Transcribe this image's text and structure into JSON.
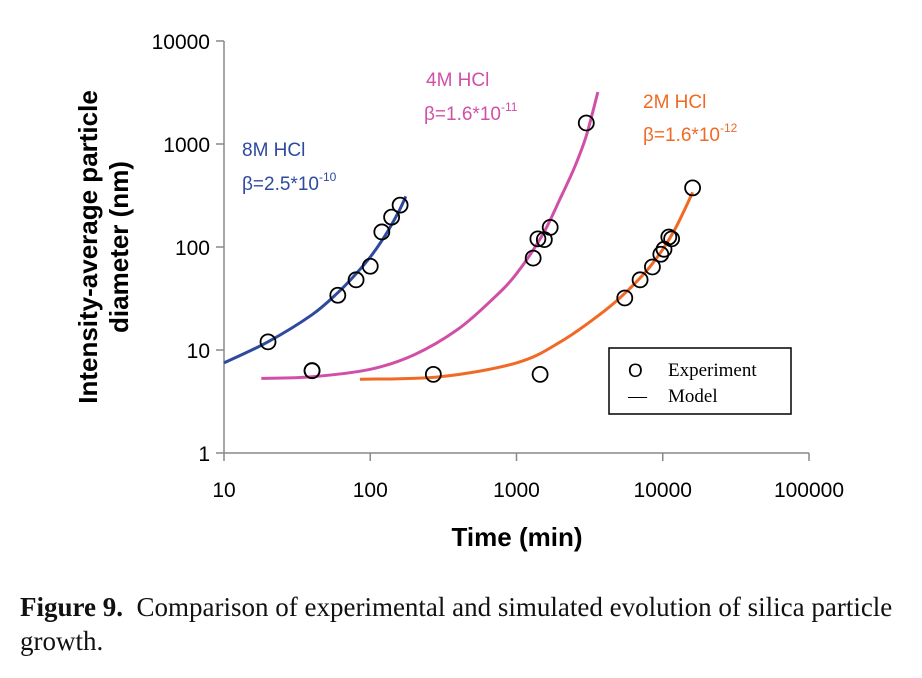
{
  "caption": {
    "label": "Figure 9.",
    "text": "Comparison of experimental and simulated evolution of silica particle growth."
  },
  "chart_data": {
    "type": "scatter",
    "xscale": "log",
    "yscale": "log",
    "xlabel": "Time (min)",
    "ylabel_lines": [
      "Intensity-average particle",
      "diameter (nm)"
    ],
    "xlim": [
      10,
      100000
    ],
    "ylim": [
      1,
      10000
    ],
    "x_ticks": [
      10,
      100,
      1000,
      10000,
      100000
    ],
    "x_tick_labels": [
      "10",
      "100",
      "1000",
      "10000",
      "100000"
    ],
    "y_ticks": [
      1,
      10,
      100,
      1000,
      10000
    ],
    "y_tick_labels": [
      "1",
      "10",
      "100",
      "1000",
      "10000"
    ],
    "grid": false,
    "legend": {
      "placement": "bottom-right",
      "marker_symbol": "O",
      "experiment_label": "Experiment",
      "line_symbol": "—",
      "model_label": "Model"
    },
    "series": [
      {
        "name": "8M HCl",
        "beta_text": "β=2.5*10",
        "beta_exp": "-10",
        "color": "#2e4a9e",
        "experiment": {
          "x": [
            20,
            40,
            60,
            80,
            100,
            120,
            140,
            160
          ],
          "y": [
            12,
            6.3,
            34,
            48,
            65,
            140,
            195,
            255
          ]
        },
        "model": {
          "x": [
            10,
            20,
            40,
            60,
            80,
            100,
            120,
            140,
            160,
            175
          ],
          "y": [
            7.5,
            12,
            22,
            36,
            55,
            80,
            115,
            165,
            235,
            310
          ]
        }
      },
      {
        "name": "4M HCl",
        "beta_text": "β=1.6*10",
        "beta_exp": "-11",
        "color": "#d050a8",
        "experiment": {
          "x": [
            40,
            270,
            1300,
            1400,
            1550,
            1700,
            3000
          ],
          "y": [
            6.3,
            5.8,
            78,
            120,
            118,
            155,
            1600
          ]
        },
        "model": {
          "x": [
            18,
            40,
            100,
            200,
            400,
            700,
            1000,
            1500,
            2000,
            2500,
            3000,
            3600
          ],
          "y": [
            5.3,
            5.5,
            6.5,
            9,
            16,
            32,
            55,
            130,
            300,
            600,
            1200,
            3200
          ]
        }
      },
      {
        "name": "2M HCl",
        "beta_text": "β=1.6*10",
        "beta_exp": "-12",
        "color": "#f06a25",
        "experiment": {
          "x": [
            1450,
            5500,
            7000,
            8500,
            9700,
            10200,
            11000,
            11500,
            16000
          ],
          "y": [
            5.8,
            32,
            48,
            64,
            85,
            95,
            125,
            120,
            375
          ]
        },
        "model": {
          "x": [
            85,
            300,
            1000,
            2000,
            4000,
            6000,
            8000,
            10000,
            12000,
            14000,
            16000
          ],
          "y": [
            5.2,
            5.5,
            7.5,
            12,
            24,
            40,
            62,
            95,
            145,
            225,
            340
          ]
        }
      }
    ]
  }
}
